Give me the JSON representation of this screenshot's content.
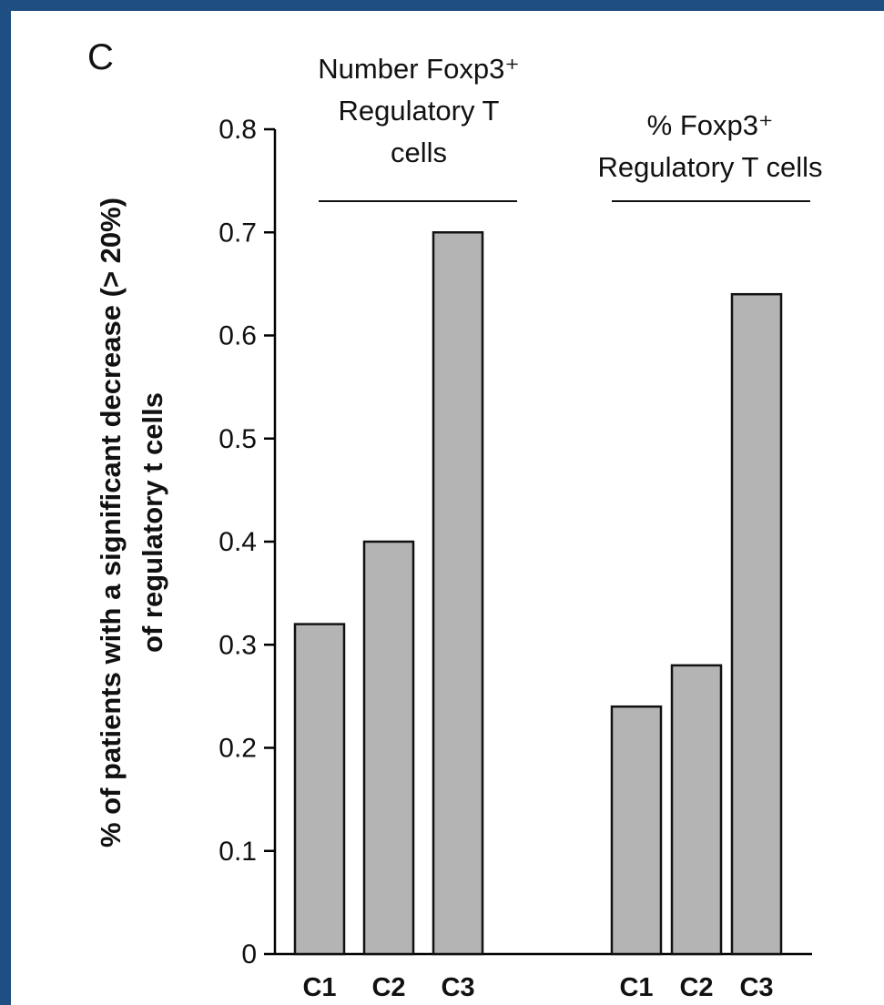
{
  "chart_data": {
    "type": "bar",
    "panel_label": "C",
    "ylabel_lines": [
      "% of patients with a significant decrease (> 20%)",
      "of regulatory t cells"
    ],
    "ylim": [
      0,
      0.8
    ],
    "yticks": [
      "0",
      "0.1",
      "0.2",
      "0.3",
      "0.4",
      "0.5",
      "0.6",
      "0.7",
      "0.8"
    ],
    "grid": false,
    "bar_color": "#b4b4b4",
    "groups": [
      {
        "title_lines": [
          "Number Foxp3⁺",
          "Regulatory T",
          "cells"
        ],
        "categories": [
          "C1",
          "C2",
          "C3"
        ],
        "values": [
          0.32,
          0.4,
          0.7
        ]
      },
      {
        "title_lines": [
          "% Foxp3⁺",
          "Regulatory T cells"
        ],
        "categories": [
          "C1",
          "C2",
          "C3"
        ],
        "values": [
          0.24,
          0.28,
          0.64
        ]
      }
    ]
  },
  "colors": {
    "frame": "#1f4e82",
    "panel": "#ffffff"
  }
}
